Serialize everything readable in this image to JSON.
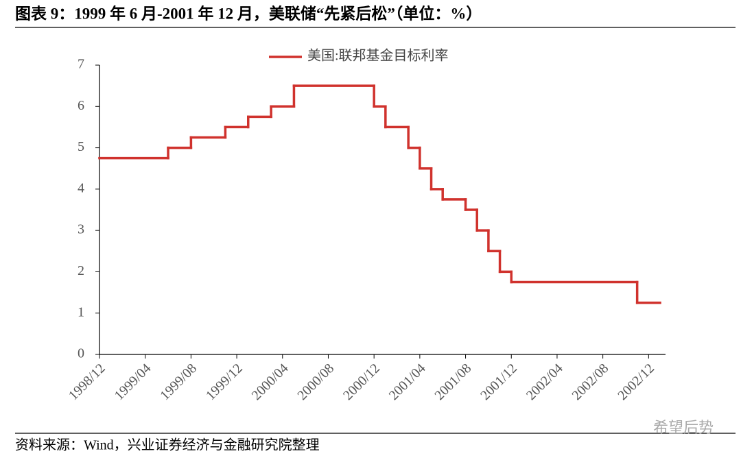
{
  "chart_data": {
    "type": "step",
    "title": "图表 9：1999 年 6 月-2001 年 12 月，美联储“先紧后松”（单位：%）",
    "source": "资料来源：Wind，兴业证券经济与金融研究院整理",
    "watermark": "希望后势",
    "x": [
      "1998/12",
      "1999/06",
      "1999/08",
      "1999/11",
      "2000/01",
      "2000/03",
      "2000/05",
      "2000/12",
      "2001/01",
      "2001/03",
      "2001/04",
      "2001/05",
      "2001/06",
      "2001/08",
      "2001/09",
      "2001/10",
      "2001/11",
      "2001/12",
      "2002/11"
    ],
    "series": [
      {
        "name": "美国:联邦基金目标利率",
        "color": "#d0322d",
        "values": [
          4.75,
          5.0,
          5.25,
          5.5,
          5.75,
          6.0,
          6.5,
          6.0,
          5.5,
          5.0,
          4.5,
          4.0,
          3.75,
          3.5,
          3.0,
          2.5,
          2.0,
          1.75,
          1.25
        ]
      }
    ],
    "xlim": [
      "1998/12",
      "2003/01"
    ],
    "xticks": [
      "1998/12",
      "1999/04",
      "1999/08",
      "1999/12",
      "2000/04",
      "2000/08",
      "2000/12",
      "2001/04",
      "2001/08",
      "2001/12",
      "2002/04",
      "2002/08",
      "2002/12"
    ],
    "ylim": [
      0,
      7
    ],
    "yticks": [
      0,
      1,
      2,
      3,
      4,
      5,
      6,
      7
    ],
    "legend": "top"
  }
}
